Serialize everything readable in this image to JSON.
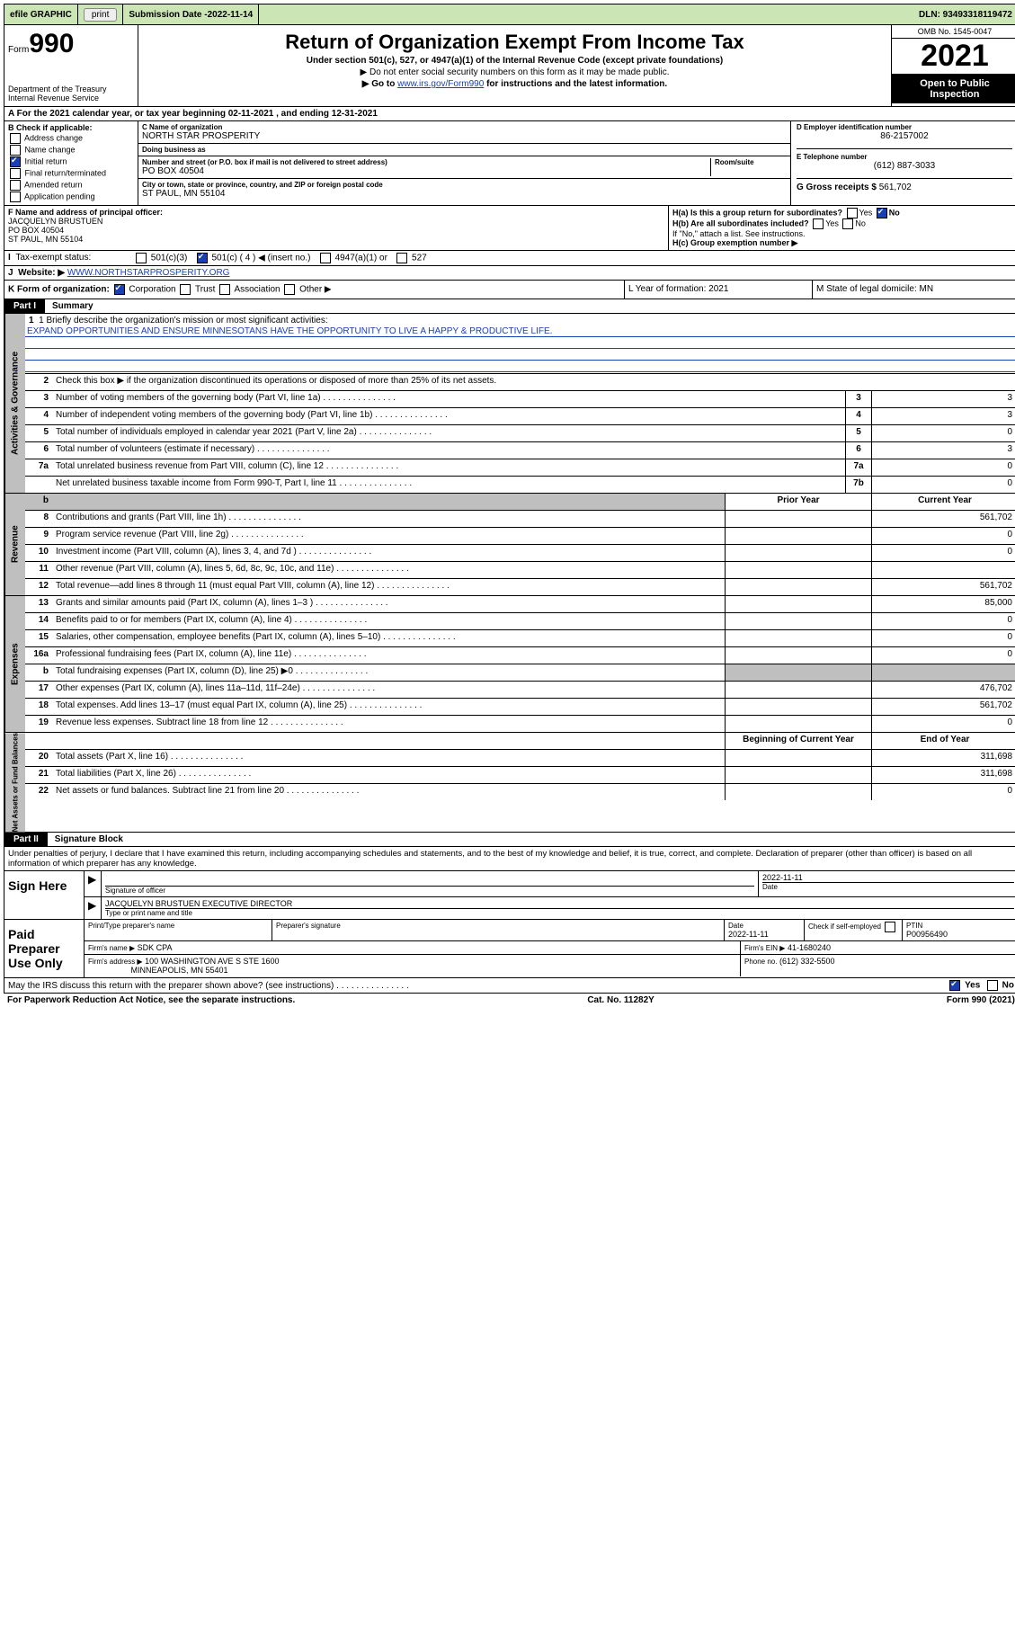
{
  "topbar": {
    "efile": "efile GRAPHIC",
    "print": "print",
    "sub_label": "Submission Date - ",
    "sub_date": "2022-11-14",
    "dln": "DLN: 93493318119472"
  },
  "header": {
    "form_label": "Form",
    "form_no": "990",
    "dept": "Department of the Treasury",
    "irs": "Internal Revenue Service",
    "title": "Return of Organization Exempt From Income Tax",
    "sub": "Under section 501(c), 527, or 4947(a)(1) of the Internal Revenue Code (except private foundations)",
    "note1": "▶ Do not enter social security numbers on this form as it may be made public.",
    "note2_a": "▶ Go to ",
    "note2_link": "www.irs.gov/Form990",
    "note2_b": " for instructions and the latest information.",
    "omb": "OMB No. 1545-0047",
    "year": "2021",
    "inspect1": "Open to Public",
    "inspect2": "Inspection"
  },
  "rowA": "A For the 2021 calendar year, or tax year beginning 02-11-2021   , and ending 12-31-2021",
  "colB": {
    "hdr": "B Check if applicable:",
    "items": [
      "Address change",
      "Name change",
      "Initial return",
      "Final return/terminated",
      "Amended return",
      "Application pending"
    ],
    "checked_idx": 2
  },
  "colC": {
    "name_lbl": "C Name of organization",
    "name": "NORTH STAR PROSPERITY",
    "dba_lbl": "Doing business as",
    "dba": "",
    "street_lbl": "Number and street (or P.O. box if mail is not delivered to street address)",
    "room_lbl": "Room/suite",
    "street": "PO BOX 40504",
    "city_lbl": "City or town, state or province, country, and ZIP or foreign postal code",
    "city": "ST PAUL, MN  55104"
  },
  "colD": {
    "lbl": "D Employer identification number",
    "val": "86-2157002"
  },
  "colE": {
    "lbl": "E Telephone number",
    "val": "(612) 887-3033"
  },
  "colG": {
    "lbl": "G Gross receipts $",
    "val": "561,702"
  },
  "rowF": {
    "lbl": "F Name and address of principal officer:",
    "name": "JACQUELYN BRUSTUEN",
    "addr1": "PO BOX 40504",
    "addr2": "ST PAUL, MN  55104"
  },
  "rowH": {
    "a": "H(a)  Is this a group return for subordinates?",
    "a_yes": "Yes",
    "a_no": "No",
    "b": "H(b)  Are all subordinates included?",
    "b_yes": "Yes",
    "b_no": "No",
    "b_note": "If \"No,\" attach a list. See instructions.",
    "c": "H(c)  Group exemption number ▶"
  },
  "rowI": {
    "lbl": "Tax-exempt status:",
    "o1": "501(c)(3)",
    "o2": "501(c) ( 4 ) ◀ (insert no.)",
    "o3": "4947(a)(1) or",
    "o4": "527"
  },
  "rowJ": {
    "lbl": "Website: ▶",
    "val": "WWW.NORTHSTARPROSPERITY.ORG"
  },
  "rowK": {
    "lbl": "K Form of organization:",
    "o1": "Corporation",
    "o2": "Trust",
    "o3": "Association",
    "o4": "Other ▶"
  },
  "rowL": "L Year of formation: 2021",
  "rowM": "M State of legal domicile: MN",
  "part1": {
    "num": "Part I",
    "title": "Summary"
  },
  "mission": {
    "lbl": "1  Briefly describe the organization's mission or most significant activities:",
    "text": "EXPAND OPPORTUNITIES AND ENSURE MINNESOTANS HAVE THE OPPORTUNITY TO LIVE A HAPPY & PRODUCTIVE LIFE."
  },
  "line2": "Check this box ▶    if the organization discontinued its operations or disposed of more than 25% of its net assets.",
  "gov_lines": [
    {
      "n": "3",
      "d": "Number of voting members of the governing body (Part VI, line 1a)",
      "box": "3",
      "v": "3"
    },
    {
      "n": "4",
      "d": "Number of independent voting members of the governing body (Part VI, line 1b)",
      "box": "4",
      "v": "3"
    },
    {
      "n": "5",
      "d": "Total number of individuals employed in calendar year 2021 (Part V, line 2a)",
      "box": "5",
      "v": "0"
    },
    {
      "n": "6",
      "d": "Total number of volunteers (estimate if necessary)",
      "box": "6",
      "v": "3"
    },
    {
      "n": "7a",
      "d": "Total unrelated business revenue from Part VIII, column (C), line 12",
      "box": "7a",
      "v": "0"
    },
    {
      "n": "",
      "d": "Net unrelated business taxable income from Form 990-T, Part I, line 11",
      "box": "7b",
      "v": "0"
    }
  ],
  "col_hdrs": {
    "prior": "Prior Year",
    "cur": "Current Year"
  },
  "rev_lines": [
    {
      "n": "8",
      "d": "Contributions and grants (Part VIII, line 1h)",
      "p": "",
      "c": "561,702"
    },
    {
      "n": "9",
      "d": "Program service revenue (Part VIII, line 2g)",
      "p": "",
      "c": "0"
    },
    {
      "n": "10",
      "d": "Investment income (Part VIII, column (A), lines 3, 4, and 7d )",
      "p": "",
      "c": "0"
    },
    {
      "n": "11",
      "d": "Other revenue (Part VIII, column (A), lines 5, 6d, 8c, 9c, 10c, and 11e)",
      "p": "",
      "c": ""
    },
    {
      "n": "12",
      "d": "Total revenue—add lines 8 through 11 (must equal Part VIII, column (A), line 12)",
      "p": "",
      "c": "561,702"
    }
  ],
  "exp_lines": [
    {
      "n": "13",
      "d": "Grants and similar amounts paid (Part IX, column (A), lines 1–3 )",
      "p": "",
      "c": "85,000"
    },
    {
      "n": "14",
      "d": "Benefits paid to or for members (Part IX, column (A), line 4)",
      "p": "",
      "c": "0"
    },
    {
      "n": "15",
      "d": "Salaries, other compensation, employee benefits (Part IX, column (A), lines 5–10)",
      "p": "",
      "c": "0"
    },
    {
      "n": "16a",
      "d": "Professional fundraising fees (Part IX, column (A), line 11e)",
      "p": "",
      "c": "0"
    },
    {
      "n": "b",
      "d": "Total fundraising expenses (Part IX, column (D), line 25) ▶0",
      "p": "shade",
      "c": "shade"
    },
    {
      "n": "17",
      "d": "Other expenses (Part IX, column (A), lines 11a–11d, 11f–24e)",
      "p": "",
      "c": "476,702"
    },
    {
      "n": "18",
      "d": "Total expenses. Add lines 13–17 (must equal Part IX, column (A), line 25)",
      "p": "",
      "c": "561,702"
    },
    {
      "n": "19",
      "d": "Revenue less expenses. Subtract line 18 from line 12",
      "p": "",
      "c": "0"
    }
  ],
  "na_hdrs": {
    "beg": "Beginning of Current Year",
    "end": "End of Year"
  },
  "na_lines": [
    {
      "n": "20",
      "d": "Total assets (Part X, line 16)",
      "p": "",
      "c": "311,698"
    },
    {
      "n": "21",
      "d": "Total liabilities (Part X, line 26)",
      "p": "",
      "c": "311,698"
    },
    {
      "n": "22",
      "d": "Net assets or fund balances. Subtract line 21 from line 20",
      "p": "",
      "c": "0"
    }
  ],
  "vtabs": {
    "gov": "Activities & Governance",
    "rev": "Revenue",
    "exp": "Expenses",
    "na": "Net Assets or Fund Balances"
  },
  "part2": {
    "num": "Part II",
    "title": "Signature Block"
  },
  "decl": "Under penalties of perjury, I declare that I have examined this return, including accompanying schedules and statements, and to the best of my knowledge and belief, it is true, correct, and complete. Declaration of preparer (other than officer) is based on all information of which preparer has any knowledge.",
  "sign": {
    "here": "Sign Here",
    "sig_lbl": "Signature of officer",
    "date_lbl": "Date",
    "date": "2022-11-11",
    "name": "JACQUELYN BRUSTUEN  EXECUTIVE DIRECTOR",
    "name_lbl": "Type or print name and title"
  },
  "paid": {
    "lbl": "Paid Preparer Use Only",
    "h1": "Print/Type preparer's name",
    "h2": "Preparer's signature",
    "h3": "Date",
    "h4": "Check     if self-employed",
    "h5": "PTIN",
    "date": "2022-11-11",
    "ptin": "P00956490",
    "firm_lbl": "Firm's name   ▶",
    "firm": "SDK CPA",
    "ein_lbl": "Firm's EIN ▶",
    "ein": "41-1680240",
    "addr_lbl": "Firm's address ▶",
    "addr1": "100 WASHINGTON AVE S STE 1600",
    "addr2": "MINNEAPOLIS, MN  55401",
    "ph_lbl": "Phone no.",
    "ph": "(612) 332-5500"
  },
  "may_irs": {
    "d": "May the IRS discuss this return with the preparer shown above? (see instructions)",
    "yes": "Yes",
    "no": "No"
  },
  "footer": {
    "l": "For Paperwork Reduction Act Notice, see the separate instructions.",
    "m": "Cat. No. 11282Y",
    "r": "Form 990 (2021)"
  }
}
